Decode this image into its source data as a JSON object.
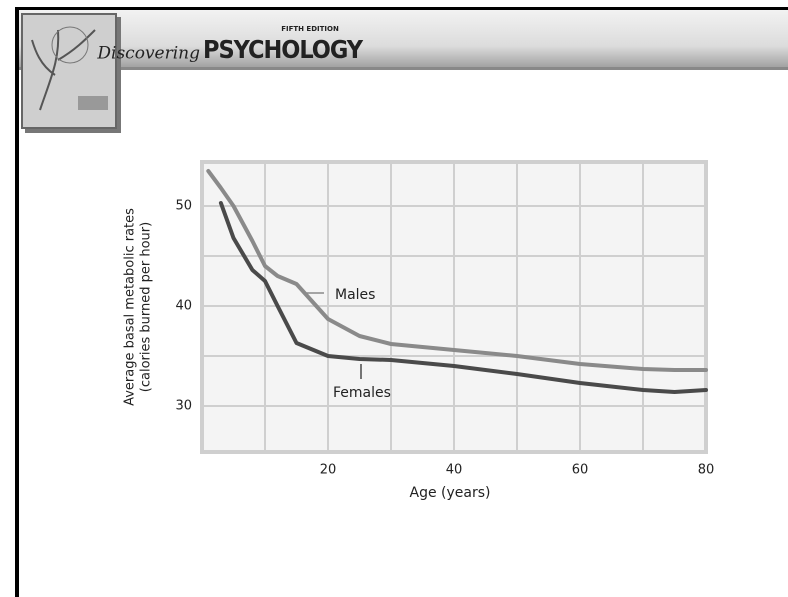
{
  "header": {
    "edition": "FIFTH EDITION",
    "title_script": "Discovering",
    "title": "PSYCHOLOGY"
  },
  "chart_data": {
    "type": "line",
    "x": [
      1,
      3,
      5,
      8,
      10,
      12,
      15,
      20,
      25,
      30,
      40,
      50,
      60,
      70,
      75,
      80
    ],
    "series": [
      {
        "name": "Males",
        "color": "#8a8a8a",
        "values": [
          53.5,
          51.8,
          50.0,
          46.5,
          44.0,
          43.0,
          42.2,
          38.7,
          37.0,
          36.2,
          35.6,
          35.0,
          34.2,
          33.7,
          33.6,
          33.6
        ]
      },
      {
        "name": "Females",
        "color": "#4a4a4a",
        "values": [
          null,
          50.3,
          46.8,
          43.6,
          42.5,
          40.0,
          36.3,
          35.0,
          34.7,
          34.6,
          34.0,
          33.2,
          32.3,
          31.6,
          31.4,
          31.6
        ]
      }
    ],
    "xlabel": "Age (years)",
    "ylabel": [
      "Average basal metabolic rates",
      "(calories burned per hour)"
    ],
    "xlim": [
      0,
      80
    ],
    "ylim": [
      25.4,
      54.4
    ],
    "xticks": [
      20,
      40,
      60,
      80
    ],
    "yticks": [
      30,
      40,
      50
    ],
    "x_gridlines": [
      10,
      20,
      30,
      40,
      50,
      60,
      70
    ],
    "y_gridlines": [
      30,
      35,
      40,
      45,
      50
    ],
    "grid": true
  }
}
